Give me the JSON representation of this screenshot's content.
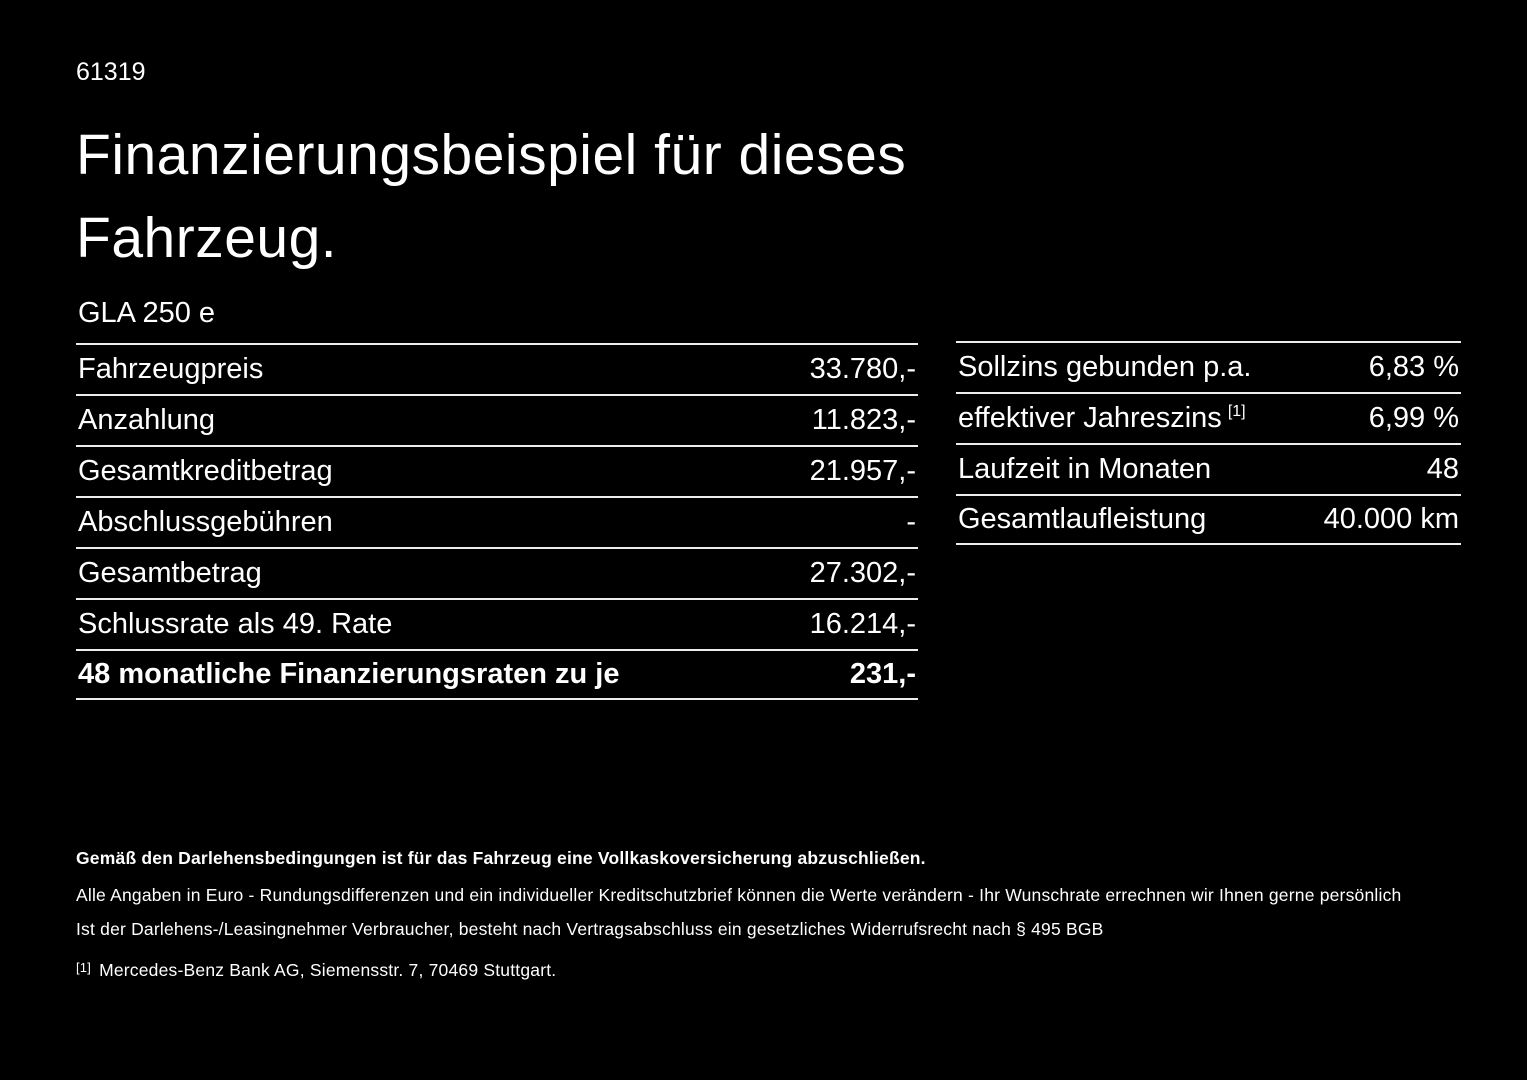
{
  "page": {
    "id_number": "61319",
    "title": "Finanzierungsbeispiel für dieses Fahrzeug.",
    "model": "GLA 250 e"
  },
  "colors": {
    "background": "#000000",
    "text": "#ffffff",
    "divider": "#ededed"
  },
  "finance_table": {
    "rows": [
      {
        "label": "Fahrzeugpreis",
        "value": "33.780,-"
      },
      {
        "label": "Anzahlung",
        "value": "11.823,-"
      },
      {
        "label": "Gesamtkreditbetrag",
        "value": "21.957,-"
      },
      {
        "label": "Abschlussgebühren",
        "value": "-"
      },
      {
        "label": "Gesamtbetrag",
        "value": "27.302,-"
      },
      {
        "label": "Schlussrate als 49. Rate",
        "value": "16.214,-"
      },
      {
        "label": "48 monatliche Finanzierungsraten zu je",
        "value": "231,-"
      }
    ]
  },
  "conditions_table": {
    "rows": [
      {
        "label": "Sollzins gebunden p.a.",
        "sup": "",
        "value": "6,83 %"
      },
      {
        "label": "effektiver Jahreszins",
        "sup": "[1]",
        "value": "6,99 %"
      },
      {
        "label": "Laufzeit in Monaten",
        "sup": "",
        "value": "48"
      },
      {
        "label": "Gesamtlaufleistung",
        "sup": "",
        "value": "40.000 km"
      }
    ]
  },
  "footnotes": {
    "insurance_note": "Gemäß den Darlehensbedingungen ist für das Fahrzeug eine Vollkaskoversicherung abzuschließen.",
    "euro_note": "Alle Angaben in Euro - Rundungsdifferenzen und ein individueller Kreditschutzbrief können die Werte verändern - Ihr Wunschrate errechnen wir Ihnen gerne persönlich",
    "withdrawal_note": "Ist der Darlehens-/Leasingnehmer Verbraucher, besteht nach Vertragsabschluss ein gesetzliches Widerrufsrecht nach § 495 BGB",
    "ref_marker": "[1]",
    "ref_text": "Mercedes-Benz Bank AG, Siemensstr. 7, 70469 Stuttgart."
  }
}
